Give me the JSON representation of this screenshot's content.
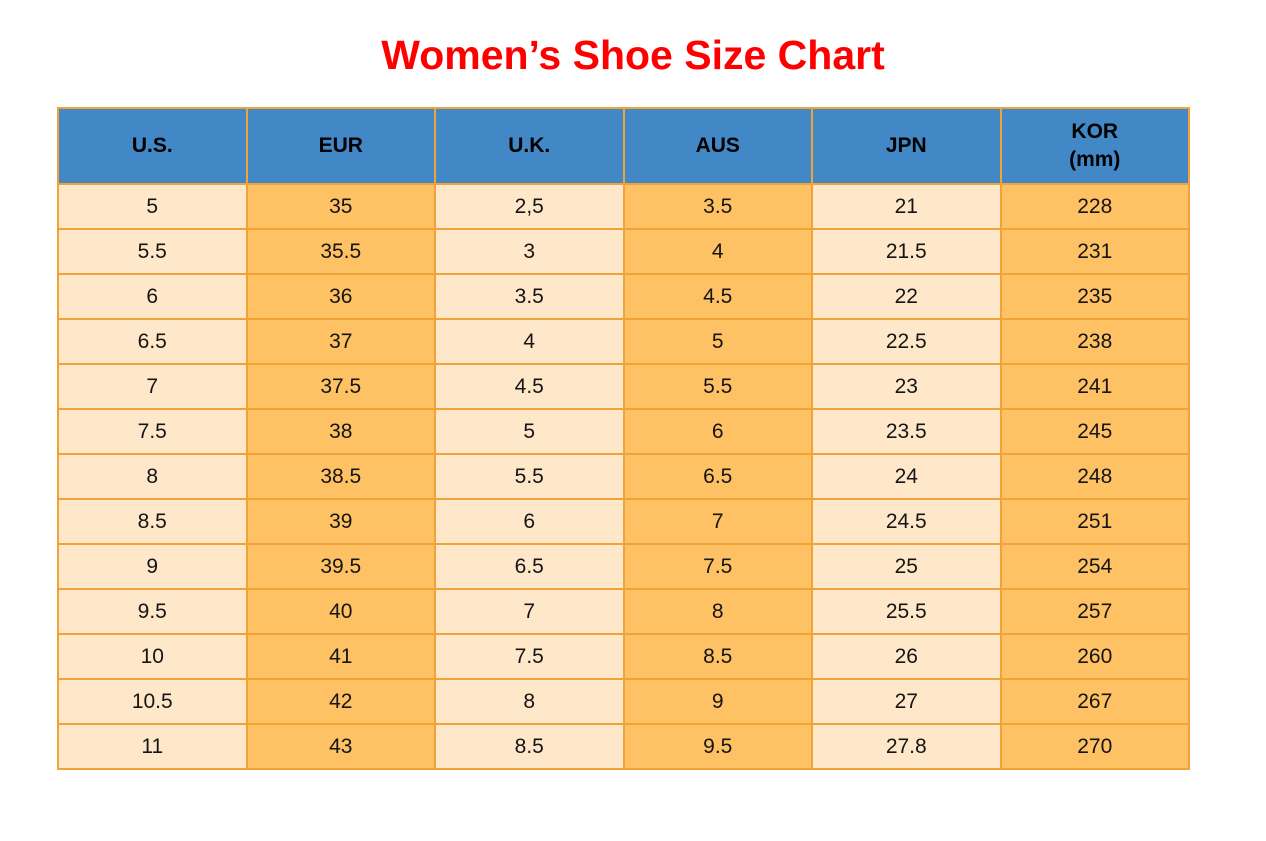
{
  "title": {
    "text": "Women’s Shoe Size Chart",
    "color": "#ff0000"
  },
  "table": {
    "columns": [
      {
        "label": "U.S."
      },
      {
        "label": "EUR"
      },
      {
        "label": "U.K."
      },
      {
        "label": "AUS"
      },
      {
        "label": "JPN"
      },
      {
        "label": "KOR",
        "sublabel": "(mm)"
      }
    ],
    "rows": [
      [
        "5",
        "35",
        "2,5",
        "3.5",
        "21",
        "228"
      ],
      [
        "5.5",
        "35.5",
        "3",
        "4",
        "21.5",
        "231"
      ],
      [
        "6",
        "36",
        "3.5",
        "4.5",
        "22",
        "235"
      ],
      [
        "6.5",
        "37",
        "4",
        "5",
        "22.5",
        "238"
      ],
      [
        "7",
        "37.5",
        "4.5",
        "5.5",
        "23",
        "241"
      ],
      [
        "7.5",
        "38",
        "5",
        "6",
        "23.5",
        "245"
      ],
      [
        "8",
        "38.5",
        "5.5",
        "6.5",
        "24",
        "248"
      ],
      [
        "8.5",
        "39",
        "6",
        "7",
        "24.5",
        "251"
      ],
      [
        "9",
        "39.5",
        "6.5",
        "7.5",
        "25",
        "254"
      ],
      [
        "9.5",
        "40",
        "7",
        "8",
        "25.5",
        "257"
      ],
      [
        "10",
        "41",
        "7.5",
        "8.5",
        "26",
        "260"
      ],
      [
        "10.5",
        "42",
        "8",
        "9",
        "27",
        "267"
      ],
      [
        "11",
        "43",
        "8.5",
        "9.5",
        "27.8",
        "270"
      ]
    ],
    "colors": {
      "header_bg": "#4287c6",
      "header_text": "#000000",
      "cell_cream": "#ffe8c9",
      "cell_orange": "#fec164",
      "border": "#f1a33a",
      "cell_text": "#151515",
      "title_color": "#ff0000"
    }
  }
}
